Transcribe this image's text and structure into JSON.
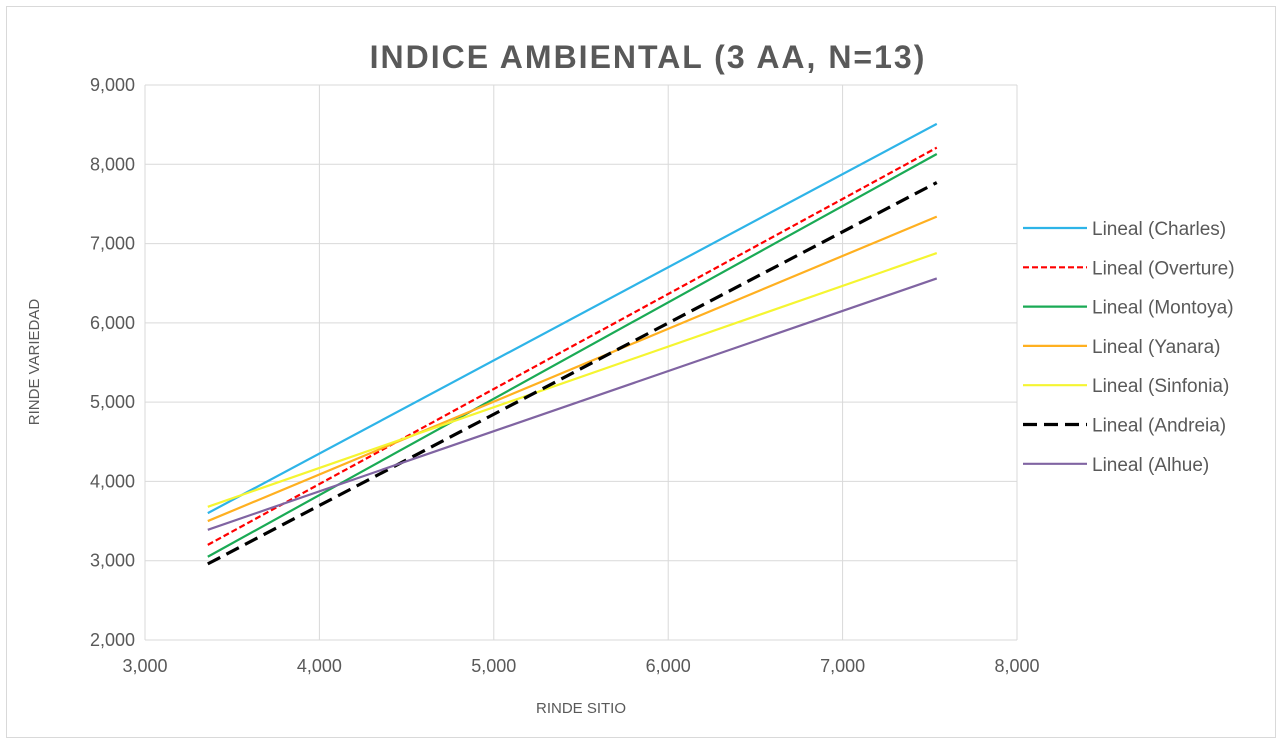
{
  "chart_data": {
    "type": "line",
    "title": "INDICE AMBIENTAL (3 AA, N=13)",
    "xlabel": "RINDE SITIO",
    "ylabel": "RINDE VARIEDAD",
    "xlim": [
      3000,
      8000
    ],
    "ylim": [
      2000,
      9000
    ],
    "x_ticks": [
      "3,000",
      "4,000",
      "5,000",
      "6,000",
      "7,000",
      "8,000"
    ],
    "y_ticks": [
      "2,000",
      "3,000",
      "4,000",
      "5,000",
      "6,000",
      "7,000",
      "8,000",
      "9,000"
    ],
    "grid": true,
    "legend_position": "right",
    "series": [
      {
        "name": "Lineal (Charles)",
        "color": "#2EB4E8",
        "dash": "solid",
        "x": [
          3360,
          7540
        ],
        "y": [
          3600,
          8510
        ]
      },
      {
        "name": "Lineal (Overture)",
        "color": "#FF0000",
        "dash": "dotted",
        "x": [
          3360,
          7540
        ],
        "y": [
          3200,
          8210
        ]
      },
      {
        "name": "Lineal (Montoya)",
        "color": "#1AAA55",
        "dash": "solid",
        "x": [
          3360,
          7540
        ],
        "y": [
          3050,
          8130
        ]
      },
      {
        "name": "Lineal (Yanara)",
        "color": "#FFB020",
        "dash": "solid",
        "x": [
          3360,
          7540
        ],
        "y": [
          3500,
          7340
        ]
      },
      {
        "name": "Lineal (Sinfonia)",
        "color": "#F5F531",
        "dash": "solid",
        "x": [
          3360,
          7540
        ],
        "y": [
          3680,
          6880
        ]
      },
      {
        "name": "Lineal (Andreia)",
        "color": "#000000",
        "dash": "dashed",
        "x": [
          3360,
          7540
        ],
        "y": [
          2960,
          7770
        ]
      },
      {
        "name": "Lineal (Alhue)",
        "color": "#8064A2",
        "dash": "solid",
        "x": [
          3360,
          7540
        ],
        "y": [
          3390,
          6560
        ]
      }
    ]
  }
}
